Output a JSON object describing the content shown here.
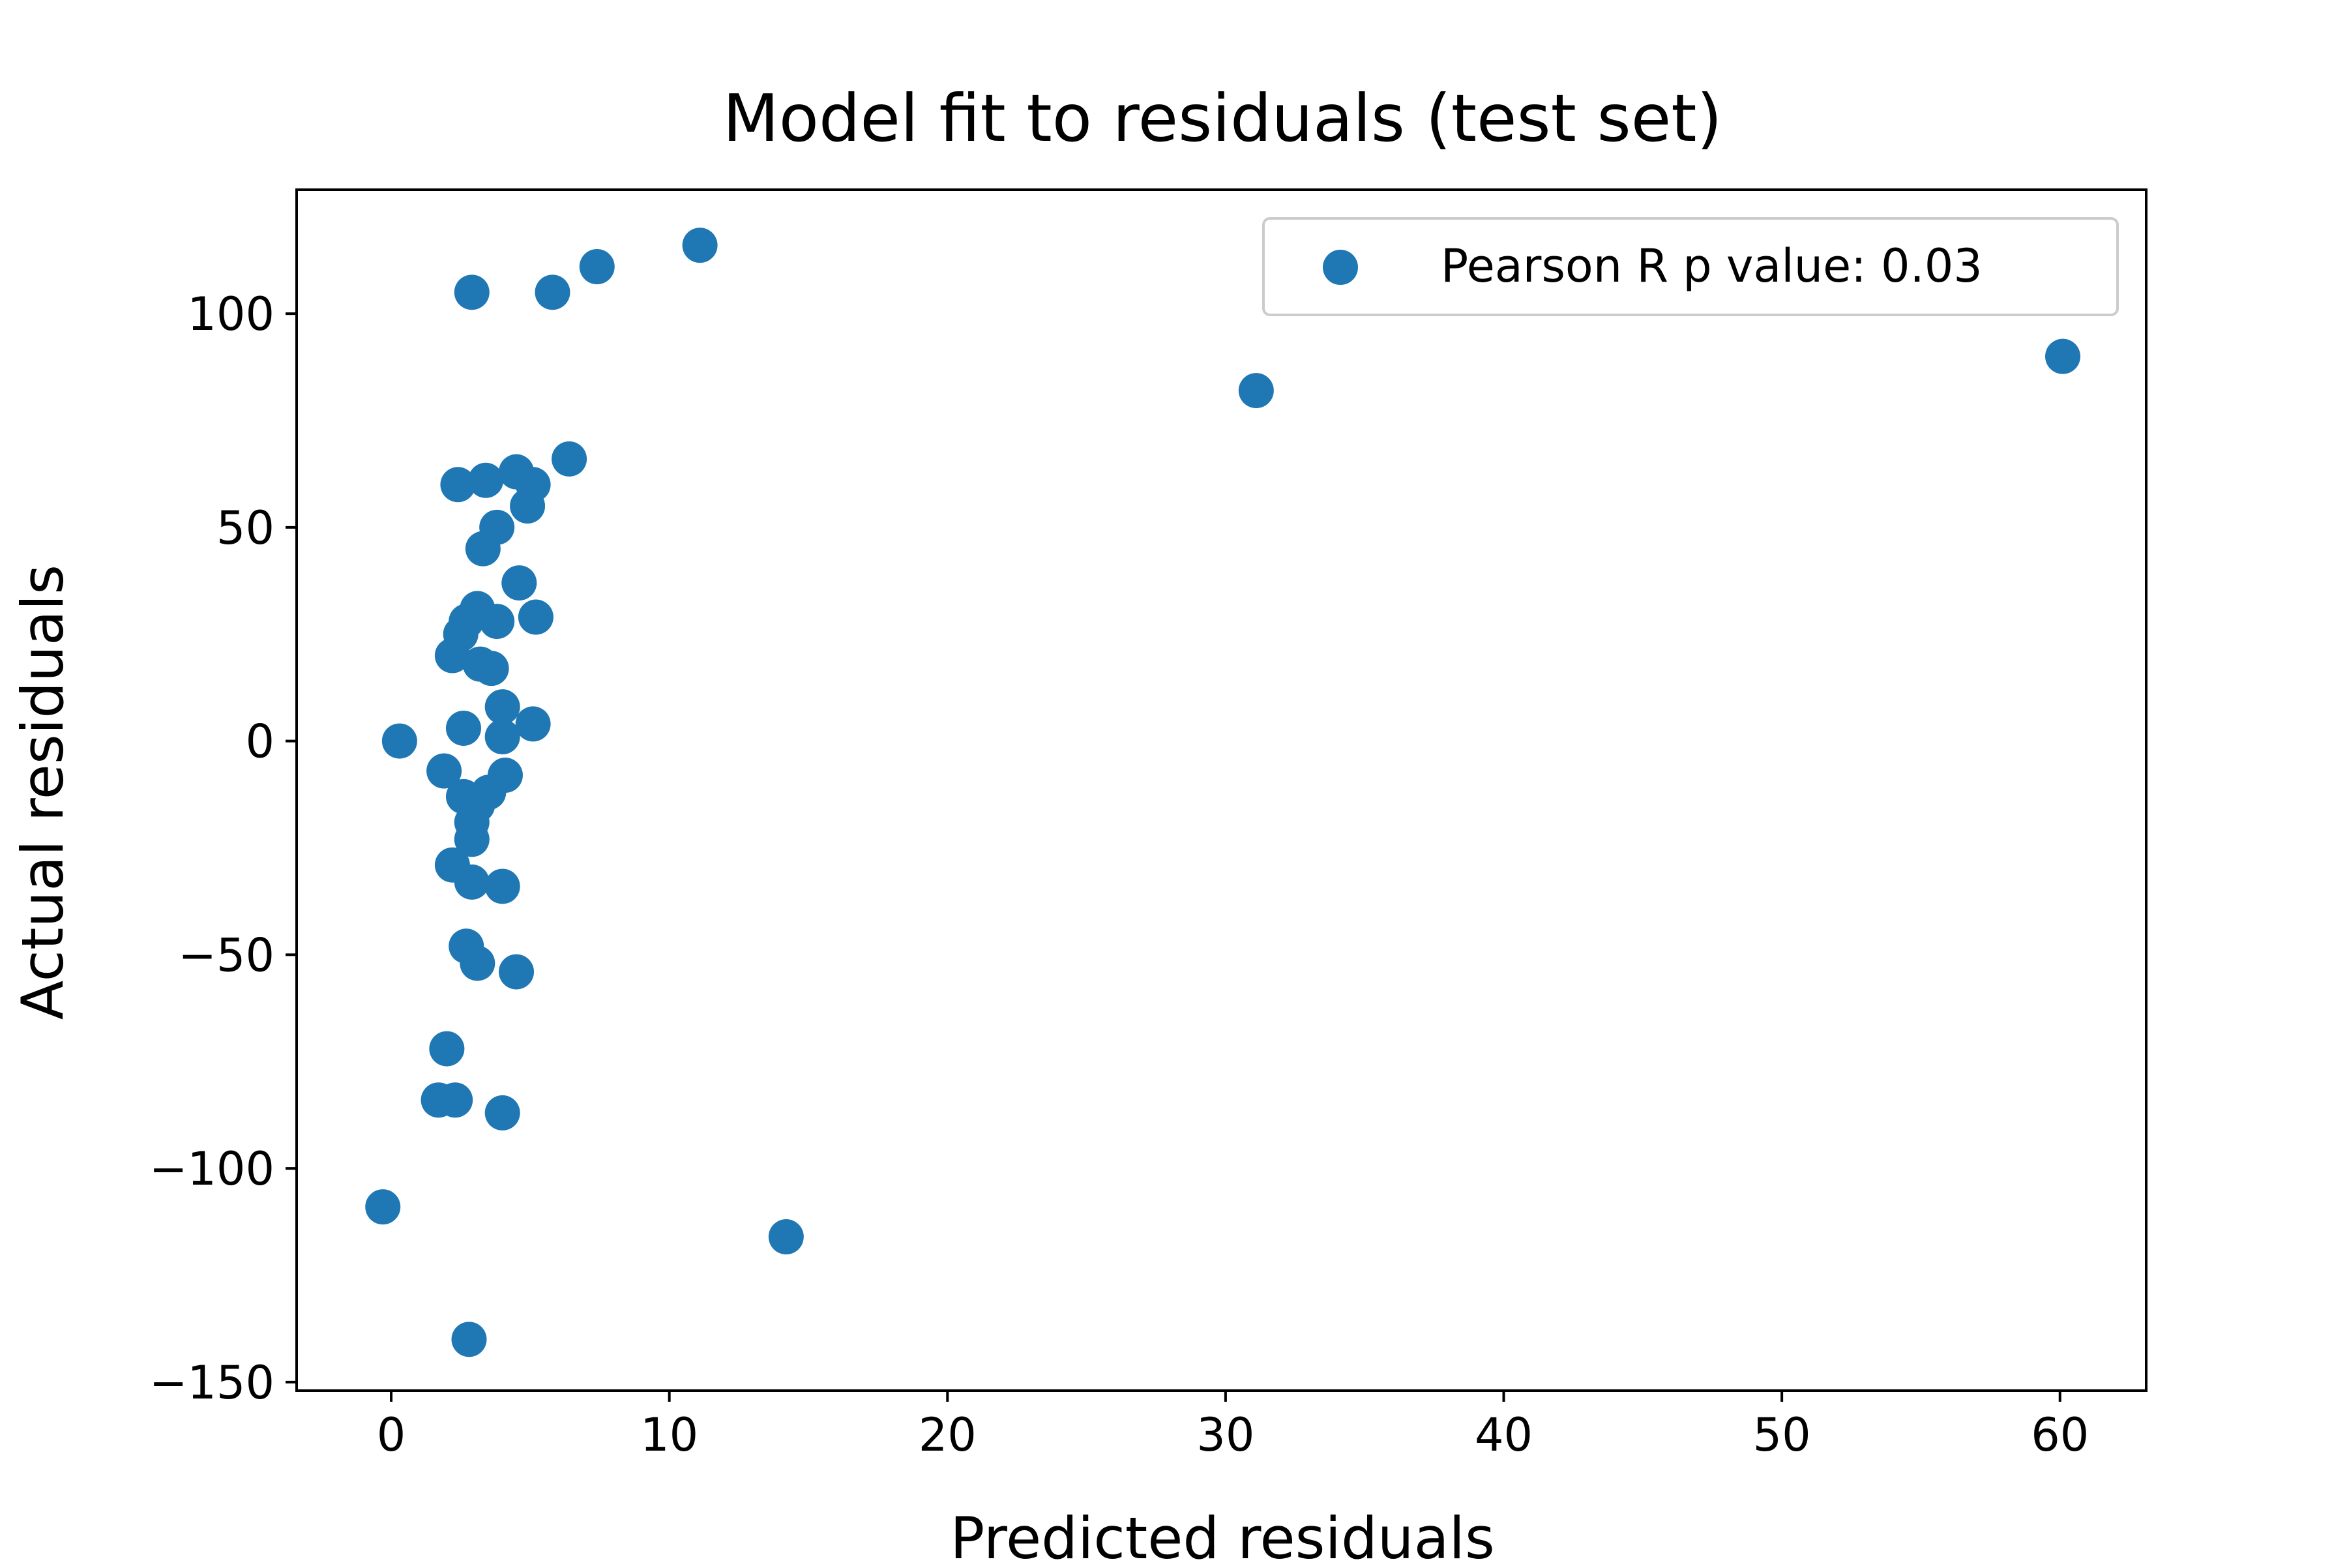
{
  "chart_data": {
    "type": "scatter",
    "title": "Model fit to residuals (test set)",
    "xlabel": "Predicted residuals",
    "ylabel": "Actual residuals",
    "xlim": [
      -3.4,
      63.1
    ],
    "ylim": [
      -152,
      129
    ],
    "xticks": [
      0,
      10,
      20,
      30,
      40,
      50,
      60
    ],
    "yticks": [
      100,
      50,
      0,
      -50,
      -100,
      -150
    ],
    "xtick_labels": [
      "0",
      "10",
      "20",
      "30",
      "40",
      "50",
      "60"
    ],
    "ytick_labels": [
      "100",
      "50",
      "0",
      "−50",
      "−100",
      "−150"
    ],
    "grid": false,
    "legend": {
      "position": "upper-right",
      "label": "Pearson R p value: 0.03"
    },
    "color": "#1f77b4",
    "series": [
      {
        "name": "Pearson R p value: 0.03",
        "x": [
          11.1,
          7.4,
          2.9,
          5.8,
          31.1,
          60.1,
          6.4,
          4.5,
          3.4,
          2.4,
          5.1,
          4.9,
          3.8,
          3.3,
          4.6,
          3.1,
          5.2,
          3.8,
          2.7,
          2.5,
          2.2,
          3.2,
          3.6,
          4.0,
          0.3,
          5.1,
          2.6,
          4.0,
          1.9,
          4.1,
          3.5,
          2.6,
          3.1,
          2.9,
          2.9,
          2.2,
          2.9,
          4.0,
          2.7,
          3.1,
          4.5,
          2.0,
          1.7,
          2.3,
          4.0,
          -0.3,
          14.2,
          2.8
        ],
        "y": [
          116,
          111,
          105,
          105,
          82,
          90,
          66,
          63,
          61,
          60,
          60,
          55,
          50,
          45,
          37,
          31,
          29,
          28,
          28,
          25,
          20,
          18,
          17,
          8,
          0,
          4,
          3,
          1,
          -7,
          -8,
          -12,
          -13,
          -15,
          -19,
          -23,
          -29,
          -33,
          -34,
          -48,
          -52,
          -54,
          -72,
          -84,
          -84,
          -87,
          -109,
          -116,
          -140
        ]
      }
    ]
  }
}
